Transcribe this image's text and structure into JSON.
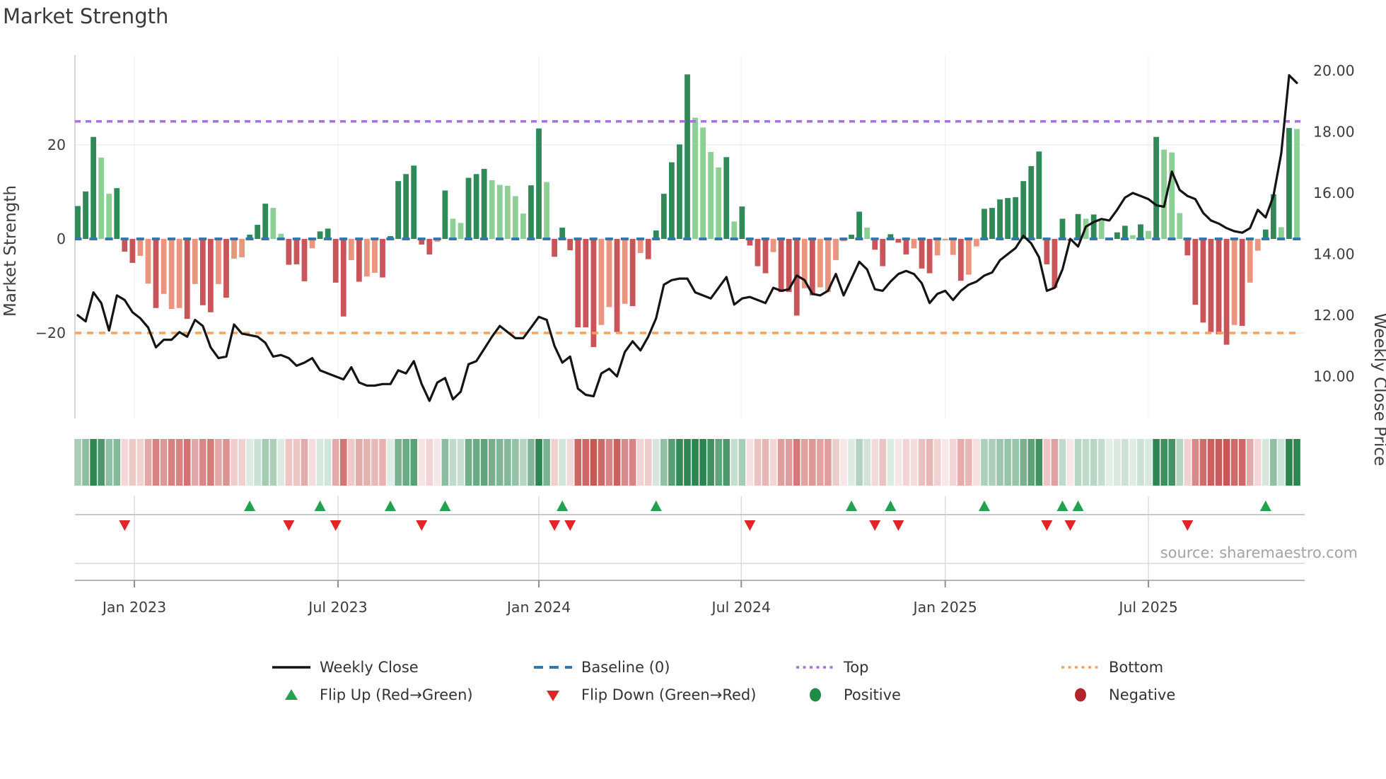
{
  "title": "Market Strength",
  "source": "source: sharemaestro.com",
  "left_axis": {
    "title": "Market Strength",
    "ticks": [
      {
        "v": 20,
        "label": "20"
      },
      {
        "v": 0,
        "label": "0"
      },
      {
        "v": -20,
        "label": "−20"
      }
    ]
  },
  "right_axis": {
    "title": "Weekly Close Price",
    "ticks": [
      {
        "v": 20,
        "label": "20.00"
      },
      {
        "v": 18,
        "label": "18.00"
      },
      {
        "v": 16,
        "label": "16.00"
      },
      {
        "v": 14,
        "label": "14.00"
      },
      {
        "v": 12,
        "label": "12.00"
      },
      {
        "v": 10,
        "label": "10.00"
      }
    ]
  },
  "x_axis": {
    "ticks": [
      {
        "week": 7.24,
        "label": "Jan 2023"
      },
      {
        "week": 33.3,
        "label": "Jul 2023"
      },
      {
        "week": 59.0,
        "label": "Jan 2024"
      },
      {
        "week": 84.9,
        "label": "Jul 2024"
      },
      {
        "week": 111.0,
        "label": "Jan 2025"
      },
      {
        "week": 137.0,
        "label": "Jul 2025"
      }
    ]
  },
  "chart_data": {
    "type": "composite",
    "x_unit": "week",
    "n_weeks": 157,
    "left_ylim": [
      -27,
      38
    ],
    "right_ylim_price": [
      9.0,
      20.5
    ],
    "baseline": 0,
    "top_line": 25,
    "bottom_line": -20,
    "series": [
      {
        "name": "Market Strength",
        "type": "bar",
        "values": [
          7,
          10.1,
          21.7,
          17.3,
          9.6,
          10.8,
          -2.7,
          -5.1,
          -3.6,
          -9.5,
          -14.7,
          -11.7,
          -14.9,
          -14.7,
          -17,
          -9.6,
          -14.1,
          -15.6,
          -9.6,
          -12.5,
          -4.2,
          -3.9,
          0.9,
          3,
          7.5,
          6.6,
          1.1,
          -5.5,
          -5.4,
          -9,
          -2,
          1.6,
          2.2,
          -9.3,
          -16.5,
          -4.5,
          -9.1,
          -8,
          -7.2,
          -8.2,
          0.6,
          12.3,
          13.8,
          15.6,
          -1.2,
          -3.3,
          -0.6,
          10.3,
          4.3,
          3.4,
          13,
          13.8,
          14.9,
          12.5,
          11.5,
          11.3,
          9.1,
          5.4,
          11.4,
          23.5,
          12.1,
          -3.8,
          2.4,
          -2.4,
          -18.8,
          -18.8,
          -23,
          -18.3,
          -14.5,
          -19.8,
          -13.8,
          -14.3,
          -3,
          -4.3,
          1.8,
          9.6,
          16.3,
          20.1,
          35,
          25.8,
          23.7,
          18.5,
          15.2,
          17.4,
          3.7,
          6.9,
          -1.4,
          -5.8,
          -7.3,
          -2.8,
          -11.3,
          -11.3,
          -16.3,
          -10.5,
          -12,
          -10.3,
          -11.3,
          -4.5,
          -0.5,
          0.9,
          5.8,
          2.4,
          -2.3,
          -5.8,
          1,
          -0.8,
          -3.3,
          -2,
          -6.3,
          -7.3,
          -3.5,
          -0.3,
          -3.4,
          -8.9,
          -7.6,
          -1.6,
          6.4,
          6.6,
          8.4,
          8.7,
          8.9,
          12.3,
          15.5,
          18.6,
          -5.4,
          -10.4,
          4.3,
          -0.4,
          5.3,
          4.3,
          5.2,
          3.9,
          0.3,
          1.4,
          2.8,
          0.8,
          3.1,
          1.7,
          21.7,
          19,
          18.4,
          5.5,
          -3.5,
          -14,
          -17.8,
          -19.8,
          -20.3,
          -22.5,
          -18.3,
          -18.5,
          -9.3,
          -2.5,
          2,
          9.5,
          2.5,
          23.6,
          23.4
        ],
        "bar_shade": [
          "dg",
          "dg",
          "dg",
          "lg",
          "lg",
          "dg",
          "dr",
          "dr",
          "lr",
          "lr",
          "dr",
          "lr",
          "lr",
          "lr",
          "dr",
          "lr",
          "dr",
          "dr",
          "lr",
          "dr",
          "lr",
          "lr",
          "dg",
          "dg",
          "dg",
          "lg",
          "lg",
          "dr",
          "dr",
          "dr",
          "lr",
          "dg",
          "dg",
          "dr",
          "dr",
          "lr",
          "dr",
          "lr",
          "lr",
          "dr",
          "dg",
          "dg",
          "dg",
          "dg",
          "dr",
          "dr",
          "lr",
          "dg",
          "lg",
          "lg",
          "dg",
          "dg",
          "dg",
          "lg",
          "lg",
          "lg",
          "lg",
          "lg",
          "dg",
          "dg",
          "lg",
          "dr",
          "dg",
          "dr",
          "dr",
          "dr",
          "dr",
          "lr",
          "lr",
          "dr",
          "lr",
          "dr",
          "lr",
          "dr",
          "dg",
          "dg",
          "dg",
          "dg",
          "dg",
          "lg",
          "lg",
          "lg",
          "lg",
          "dg",
          "lg",
          "dg",
          "dr",
          "dr",
          "dr",
          "lr",
          "dr",
          "dr",
          "dr",
          "lr",
          "dr",
          "lr",
          "lr",
          "lr",
          "lr",
          "dg",
          "dg",
          "lg",
          "dr",
          "dr",
          "dg",
          "dr",
          "dr",
          "lr",
          "dr",
          "dr",
          "lr",
          "lr",
          "lr",
          "dr",
          "lr",
          "lr",
          "dg",
          "dg",
          "dg",
          "dg",
          "dg",
          "dg",
          "dg",
          "dg",
          "dr",
          "dr",
          "dg",
          "dr",
          "dg",
          "lg",
          "dg",
          "lg",
          "lg",
          "dg",
          "dg",
          "lg",
          "dg",
          "lg",
          "dg",
          "lg",
          "lg",
          "lg",
          "dr",
          "dr",
          "dr",
          "dr",
          "dr",
          "dr",
          "lr",
          "dr",
          "lr",
          "lr",
          "dg",
          "dg",
          "lg",
          "dg",
          "lg"
        ]
      },
      {
        "name": "Weekly Close",
        "type": "line",
        "values": [
          12,
          11.8,
          12.75,
          12.4,
          11.5,
          12.65,
          12.5,
          12.1,
          11.9,
          11.6,
          10.95,
          11.2,
          11.2,
          11.45,
          11.3,
          11.85,
          11.65,
          10.95,
          10.6,
          10.65,
          11.7,
          11.4,
          11.35,
          11.3,
          11.1,
          10.65,
          10.7,
          10.6,
          10.35,
          10.45,
          10.6,
          10.2,
          10.1,
          10,
          9.9,
          10.3,
          9.8,
          9.7,
          9.7,
          9.75,
          9.75,
          10.2,
          10.1,
          10.5,
          9.75,
          9.2,
          9.8,
          9.95,
          9.25,
          9.5,
          10.4,
          10.5,
          10.9,
          11.3,
          11.65,
          11.45,
          11.25,
          11.25,
          11.6,
          11.95,
          11.85,
          11,
          10.45,
          10.65,
          9.6,
          9.4,
          9.35,
          10.1,
          10.25,
          10,
          10.8,
          11.15,
          10.85,
          11.3,
          11.9,
          13,
          13.15,
          13.2,
          13.2,
          12.75,
          12.65,
          12.55,
          12.9,
          13.25,
          12.35,
          12.55,
          12.6,
          12.5,
          12.4,
          12.9,
          12.8,
          12.85,
          13.3,
          13.15,
          12.7,
          12.65,
          12.8,
          13.35,
          12.65,
          13.2,
          13.75,
          13.5,
          12.85,
          12.8,
          13.1,
          13.35,
          13.45,
          13.35,
          13.05,
          12.4,
          12.7,
          12.8,
          12.5,
          12.8,
          13,
          13.1,
          13.3,
          13.4,
          13.8,
          14,
          14.2,
          14.6,
          14.35,
          13.9,
          12.8,
          12.9,
          13.5,
          14.5,
          14.25,
          14.9,
          15.05,
          15.15,
          15.1,
          15.45,
          15.85,
          16,
          15.9,
          15.8,
          15.6,
          15.55,
          16.7,
          16.1,
          15.9,
          15.8,
          15.35,
          15.1,
          15,
          14.85,
          14.75,
          14.7,
          14.85,
          15.45,
          15.2,
          15.9,
          17.3,
          19.85,
          19.6
        ]
      }
    ],
    "heatmap_source": "strength",
    "flip_up_weeks": [
      22,
      31,
      40,
      47,
      62,
      74,
      99,
      104,
      116,
      126,
      128,
      152
    ],
    "flip_down_weeks": [
      6,
      27,
      33,
      44,
      61,
      63,
      86,
      102,
      105,
      124,
      127,
      142
    ]
  },
  "legend": {
    "items": [
      {
        "label": "Weekly Close",
        "marker": "line",
        "color": "#141414"
      },
      {
        "label": "Baseline (0)",
        "marker": "dashes",
        "color": "#2f79ad"
      },
      {
        "label": "Top",
        "marker": "dots",
        "color": "#ae6fd8"
      },
      {
        "label": "Bottom",
        "marker": "dots",
        "color": "#f2a35f"
      },
      {
        "label": "Flip Up (Red→Green)",
        "marker": "tri-up",
        "color": "#22a24e"
      },
      {
        "label": "Flip Down (Green→Red)",
        "marker": "tri-down",
        "color": "#e02427"
      },
      {
        "label": "Positive",
        "marker": "dot",
        "color": "#1f8b45"
      },
      {
        "label": "Negative",
        "marker": "dot",
        "color": "#b2262c"
      }
    ]
  },
  "colors": {
    "dark_green": "#2f8a57",
    "light_green": "#8ecf96",
    "dark_red": "#c9545a",
    "light_red": "#ea967e",
    "baseline_blue": "#2f79ad",
    "top_purple": "#ae6fd8",
    "bottom_orange": "#f2a35f",
    "price_line": "#141414",
    "flip_up": "#22a24e",
    "flip_down": "#e02427",
    "heat_green_rgb": "44,134,80",
    "heat_red_rgb": "200,88,86"
  }
}
